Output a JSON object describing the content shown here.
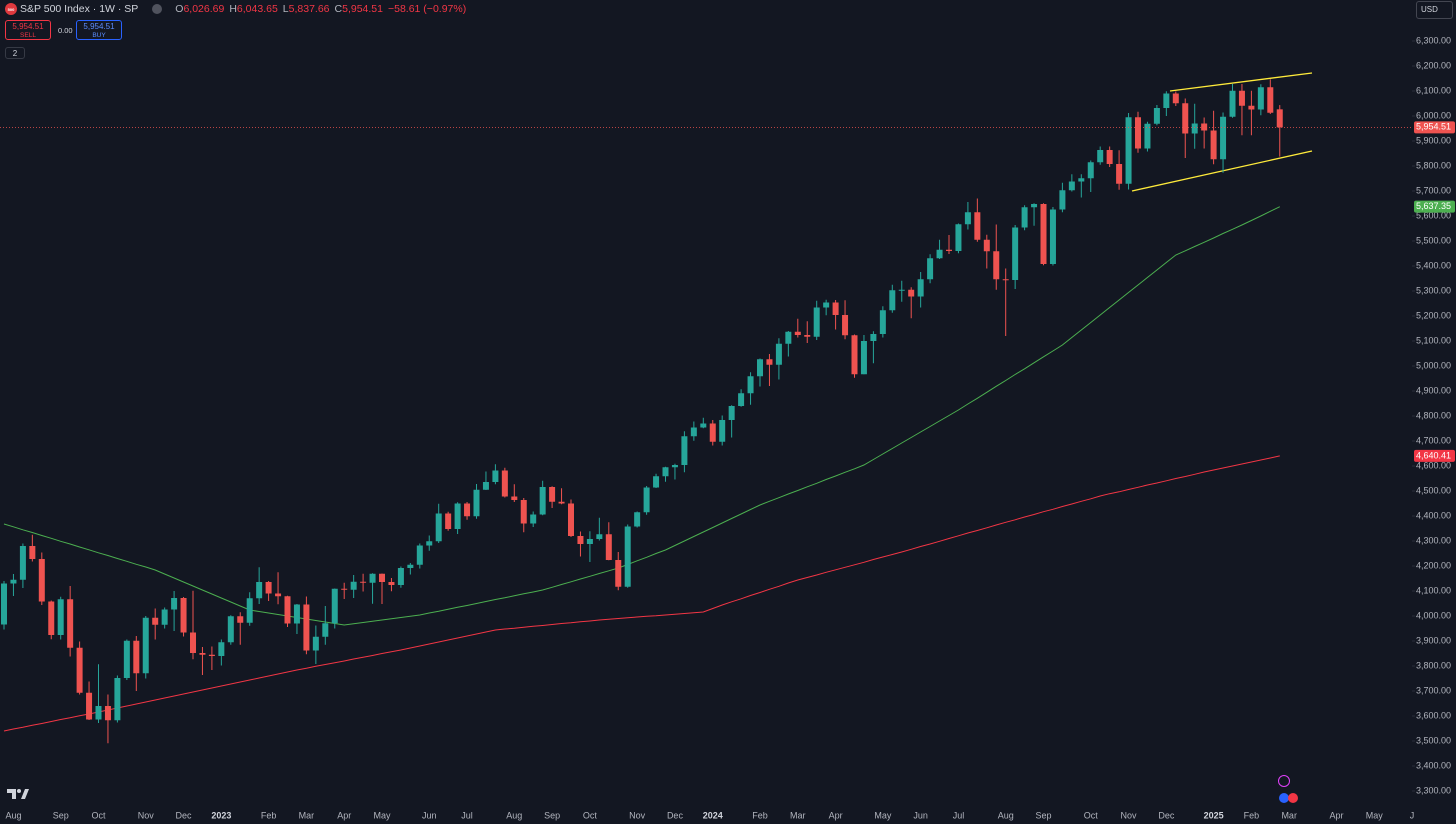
{
  "header": {
    "icon": "500",
    "title": "S&P 500 Index · 1W · SP",
    "ohlc": [
      {
        "key": "O",
        "value": "6,026.69"
      },
      {
        "key": "H",
        "value": "6,043.65"
      },
      {
        "key": "L",
        "value": "5,837.66"
      },
      {
        "key": "C",
        "value": "5,954.51"
      }
    ],
    "change": "−58.61 (−0.97%)",
    "sell": {
      "price": "5,954.51",
      "label": "SELL"
    },
    "spread": "0.00",
    "buy": {
      "price": "5,954.51",
      "label": "BUY"
    },
    "indicators": "2",
    "currency": "USD"
  },
  "chart_data": {
    "type": "candlestick",
    "categories": [
      null,
      "Aug",
      null,
      null,
      null,
      null,
      "Sep",
      null,
      null,
      null,
      "Oct",
      null,
      null,
      null,
      null,
      "Nov",
      null,
      null,
      null,
      "Dec",
      null,
      null,
      null,
      "2023",
      null,
      null,
      null,
      null,
      "Feb",
      null,
      null,
      null,
      "Mar",
      null,
      null,
      null,
      "Apr",
      null,
      null,
      null,
      "May",
      null,
      null,
      null,
      null,
      "Jun",
      null,
      null,
      null,
      "Jul",
      null,
      null,
      null,
      null,
      "Aug",
      null,
      null,
      null,
      "Sep",
      null,
      null,
      null,
      "Oct",
      null,
      null,
      null,
      null,
      "Nov",
      null,
      null,
      null,
      "Dec",
      null,
      null,
      null,
      "2024",
      null,
      null,
      null,
      null,
      "Feb",
      null,
      null,
      null,
      "Mar",
      null,
      null,
      null,
      "Apr",
      null,
      null,
      null,
      null,
      "May",
      null,
      null,
      null,
      "Jun",
      null,
      null,
      null,
      "Jul",
      null,
      null,
      null,
      null,
      "Aug",
      null,
      null,
      null,
      "Sep",
      null,
      null,
      null,
      null,
      "Oct",
      null,
      null,
      null,
      "Nov",
      null,
      null,
      null,
      "Dec",
      null,
      null,
      null,
      null,
      "2025",
      null,
      null,
      null,
      "Feb",
      null,
      null,
      null,
      "Mar",
      null,
      null,
      null,
      null,
      "Apr",
      null,
      null,
      null,
      "May",
      null,
      null,
      null,
      "J"
    ],
    "open": [
      3966,
      4130,
      4145,
      4280,
      4228,
      4058,
      3924,
      4067,
      3873,
      3693,
      3586,
      3640,
      3583,
      3752,
      3901,
      3771,
      3993,
      3965,
      4026,
      4072,
      3934,
      3852,
      3845,
      3840,
      3895,
      3999,
      3973,
      4071,
      4136,
      4090,
      4079,
      3970,
      4046,
      3862,
      3917,
      3971,
      4109,
      4105,
      4137,
      4133,
      4169,
      4136,
      4124,
      4192,
      4205,
      4282,
      4299,
      4410,
      4348,
      4450,
      4399,
      4505,
      4536,
      4582,
      4478,
      4464,
      4370,
      4406,
      4516,
      4457,
      4450,
      4320,
      4288,
      4308,
      4327,
      4224,
      4117,
      4358,
      4415,
      4514,
      4559,
      4595,
      4604,
      4719,
      4754,
      4770,
      4697,
      4784,
      4840,
      4891,
      4959,
      5027,
      5005,
      5089,
      5137,
      5124,
      5117,
      5234,
      5254,
      5204,
      5123,
      4967,
      5100,
      5128,
      5223,
      5303,
      5305,
      5278,
      5347,
      5431,
      5465,
      5460,
      5567,
      5615,
      5505,
      5459,
      5347,
      5344,
      5554,
      5635,
      5648,
      5408,
      5626,
      5703,
      5738,
      5751,
      5815,
      5864,
      5808,
      5729,
      5995,
      5870,
      5969,
      6032,
      6090,
      6051,
      5930,
      5970,
      5942,
      5827,
      5997,
      6101,
      6041,
      6026,
      6115,
      6026.69,
      null,
      null,
      null,
      null,
      null,
      null,
      null,
      null,
      null,
      null,
      null,
      null,
      null,
      null
    ],
    "high": [
      4140,
      4168,
      4290,
      4325,
      4254,
      4062,
      4077,
      4120,
      3898,
      3738,
      3807,
      3686,
      3762,
      3906,
      3920,
      4000,
      4030,
      4034,
      4100,
      4076,
      4101,
      3876,
      3878,
      3906,
      4003,
      4015,
      4095,
      4195,
      4140,
      4175,
      4081,
      4048,
      4078,
      3962,
      4040,
      4110,
      4133,
      4164,
      4169,
      4171,
      4170,
      4152,
      4198,
      4212,
      4290,
      4322,
      4449,
      4417,
      4455,
      4456,
      4528,
      4578,
      4607,
      4593,
      4527,
      4472,
      4418,
      4541,
      4519,
      4511,
      4466,
      4338,
      4339,
      4393,
      4375,
      4256,
      4366,
      4418,
      4520,
      4569,
      4597,
      4609,
      4739,
      4778,
      4793,
      4784,
      4802,
      4843,
      4907,
      4975,
      5030,
      5048,
      5111,
      5140,
      5189,
      5179,
      5261,
      5265,
      5264,
      5263,
      5126,
      5124,
      5139,
      5239,
      5325,
      5341,
      5315,
      5376,
      5447,
      5505,
      5524,
      5570,
      5656,
      5670,
      5525,
      5566,
      5390,
      5564,
      5643,
      5651,
      5651,
      5636,
      5733,
      5767,
      5767,
      5822,
      5878,
      5878,
      5863,
      6012,
      6017,
      5977,
      6044,
      6099,
      6098,
      6070,
      6049,
      5994,
      6021,
      6014,
      6128,
      6128,
      6101,
      6127,
      6147,
      6043.65,
      null,
      null,
      null,
      null,
      null,
      null,
      null,
      null,
      null,
      null,
      null,
      null,
      null,
      null
    ],
    "low": [
      3946,
      4080,
      4112,
      4218,
      4044,
      3907,
      3906,
      3838,
      3686,
      3584,
      3572,
      3491,
      3574,
      3744,
      3700,
      3750,
      3906,
      3950,
      3940,
      3918,
      3827,
      3764,
      3784,
      3802,
      3885,
      3885,
      3961,
      4048,
      4060,
      4047,
      3956,
      3928,
      3847,
      3808,
      3885,
      3950,
      4068,
      4072,
      4098,
      4049,
      4048,
      4099,
      4113,
      4166,
      4190,
      4261,
      4292,
      4341,
      4328,
      4385,
      4389,
      4504,
      4527,
      4474,
      4456,
      4335,
      4356,
      4403,
      4432,
      4447,
      4316,
      4238,
      4216,
      4302,
      4223,
      4103,
      4113,
      4354,
      4405,
      4512,
      4537,
      4546,
      4575,
      4701,
      4751,
      4682,
      4682,
      4714,
      4837,
      4845,
      4918,
      4920,
      4946,
      5038,
      5114,
      5092,
      5104,
      5203,
      5146,
      5107,
      4953,
      4967,
      5011,
      5114,
      5213,
      5257,
      5191,
      5234,
      5331,
      5428,
      5448,
      5451,
      5546,
      5497,
      5390,
      5305,
      5120,
      5308,
      5543,
      5561,
      5403,
      5402,
      5615,
      5698,
      5674,
      5696,
      5805,
      5796,
      5705,
      5706,
      5853,
      5858,
      5963,
      6000,
      6040,
      5832,
      5869,
      5870,
      5807,
      5773,
      5993,
      5923,
      5923,
      6003,
      6008,
      5837.66,
      null,
      null,
      null,
      null,
      null,
      null,
      null,
      null,
      null,
      null,
      null,
      null,
      null,
      null
    ],
    "close": [
      4130,
      4145,
      4280,
      4228,
      4058,
      3924,
      4067,
      3873,
      3693,
      3586,
      3640,
      3583,
      3752,
      3901,
      3771,
      3993,
      3965,
      4026,
      4072,
      3934,
      3852,
      3845,
      3840,
      3895,
      3999,
      3973,
      4071,
      4136,
      4090,
      4079,
      3970,
      4046,
      3862,
      3917,
      3971,
      4109,
      4105,
      4137,
      4133,
      4169,
      4136,
      4124,
      4192,
      4205,
      4282,
      4299,
      4410,
      4348,
      4450,
      4399,
      4505,
      4536,
      4582,
      4478,
      4464,
      4370,
      4406,
      4516,
      4457,
      4450,
      4320,
      4288,
      4308,
      4327,
      4224,
      4117,
      4358,
      4415,
      4514,
      4559,
      4595,
      4604,
      4719,
      4754,
      4770,
      4697,
      4784,
      4840,
      4891,
      4959,
      5027,
      5005,
      5089,
      5137,
      5124,
      5117,
      5234,
      5254,
      5204,
      5123,
      4967,
      5100,
      5128,
      5223,
      5303,
      5305,
      5278,
      5347,
      5431,
      5465,
      5460,
      5567,
      5615,
      5505,
      5459,
      5347,
      5344,
      5554,
      5635,
      5648,
      5408,
      5626,
      5703,
      5738,
      5751,
      5815,
      5864,
      5808,
      5729,
      5995,
      5870,
      5969,
      6032,
      6090,
      6051,
      5930,
      5970,
      5942,
      5827,
      5997,
      6101,
      6041,
      6026,
      6115,
      6013,
      5954.51,
      null,
      null,
      null,
      null,
      null,
      null,
      null,
      null,
      null,
      null,
      null,
      null,
      null,
      null
    ],
    "close_label": "5,954.51",
    "up_color": "#26a69a",
    "down_color": "#ef5350",
    "series": [
      {
        "color": "#4caf50",
        "last_label": "5,637.35",
        "values": [
          4368,
          4357,
          4345,
          4334,
          4322,
          4311,
          4299,
          4288,
          4276,
          4265,
          4253,
          4242,
          4230,
          4219,
          4207,
          4196,
          4184,
          4168,
          4152,
          4136,
          4120,
          4104,
          4088,
          4072,
          4056,
          4040,
          4024,
          4018,
          4012,
          4006,
          4000,
          3994,
          3988,
          3982,
          3976,
          3970,
          3964,
          3969,
          3974,
          3979,
          3984,
          3989,
          3994,
          3999,
          4004,
          4012,
          4019,
          4027,
          4035,
          4042,
          4050,
          4058,
          4066,
          4073,
          4081,
          4089,
          4096,
          4104,
          4115,
          4126,
          4137,
          4148,
          4159,
          4170,
          4181,
          4192,
          4206,
          4221,
          4235,
          4250,
          4264,
          4282,
          4300,
          4318,
          4336,
          4354,
          4372,
          4390,
          4408,
          4426,
          4444,
          4459,
          4473,
          4488,
          4502,
          4517,
          4531,
          4546,
          4560,
          4575,
          4589,
          4604,
          4626,
          4648,
          4670,
          4692,
          4714,
          4736,
          4758,
          4780,
          4802,
          4824,
          4848,
          4871,
          4895,
          4919,
          4942,
          4966,
          4989,
          5013,
          5037,
          5060,
          5084,
          5114,
          5144,
          5174,
          5204,
          5234,
          5264,
          5294,
          5324,
          5354,
          5384,
          5414,
          5444,
          5461,
          5478,
          5495,
          5512,
          5530,
          5547,
          5564,
          5582,
          5600,
          5619,
          5637.35,
          null,
          null,
          null,
          null,
          null,
          null,
          null,
          null,
          null,
          null,
          null,
          null,
          null,
          null
        ]
      },
      {
        "color": "#f23645",
        "last_label": "4,640.41",
        "values": [
          3540,
          3548,
          3555,
          3563,
          3570,
          3578,
          3586,
          3593,
          3601,
          3608,
          3616,
          3624,
          3632,
          3640,
          3648,
          3656,
          3664,
          3672,
          3680,
          3688,
          3696,
          3704,
          3712,
          3720,
          3728,
          3736,
          3744,
          3752,
          3760,
          3768,
          3776,
          3784,
          3791,
          3799,
          3806,
          3813,
          3820,
          3828,
          3835,
          3842,
          3850,
          3857,
          3864,
          3872,
          3880,
          3888,
          3896,
          3904,
          3912,
          3920,
          3928,
          3936,
          3944,
          3948,
          3951,
          3955,
          3959,
          3962,
          3966,
          3970,
          3973,
          3977,
          3980,
          3984,
          3987,
          3990,
          3993,
          3996,
          3999,
          4001,
          4004,
          4007,
          4010,
          4013,
          4016,
          4030,
          4044,
          4057,
          4069,
          4082,
          4094,
          4107,
          4119,
          4132,
          4144,
          4154,
          4164,
          4175,
          4185,
          4195,
          4205,
          4215,
          4226,
          4236,
          4246,
          4256,
          4267,
          4278,
          4288,
          4299,
          4310,
          4321,
          4332,
          4342,
          4353,
          4364,
          4375,
          4385,
          4396,
          4406,
          4417,
          4427,
          4438,
          4448,
          4459,
          4469,
          4480,
          4489,
          4497,
          4506,
          4515,
          4524,
          4532,
          4541,
          4550,
          4558,
          4567,
          4576,
          4584,
          4592,
          4600,
          4608,
          4616,
          4624,
          4632,
          4640.41,
          null,
          null,
          null,
          null,
          null,
          null,
          null,
          null,
          null,
          null,
          null,
          null,
          null,
          null
        ]
      }
    ],
    "ylim": [
      3244,
      6464
    ],
    "yticks": [
      {
        "value": 3300,
        "label": "3,300.00"
      },
      {
        "value": 3400,
        "label": "3,400.00"
      },
      {
        "value": 3500,
        "label": "3,500.00"
      },
      {
        "value": 3600,
        "label": "3,600.00"
      },
      {
        "value": 3700,
        "label": "3,700.00"
      },
      {
        "value": 3800,
        "label": "3,800.00"
      },
      {
        "value": 3900,
        "label": "3,900.00"
      },
      {
        "value": 4000,
        "label": "4,000.00"
      },
      {
        "value": 4100,
        "label": "4,100.00"
      },
      {
        "value": 4200,
        "label": "4,200.00"
      },
      {
        "value": 4300,
        "label": "4,300.00"
      },
      {
        "value": 4400,
        "label": "4,400.00"
      },
      {
        "value": 4500,
        "label": "4,500.00"
      },
      {
        "value": 4600,
        "label": "4,600.00"
      },
      {
        "value": 4700,
        "label": "4,700.00"
      },
      {
        "value": 4800,
        "label": "4,800.00"
      },
      {
        "value": 4900,
        "label": "4,900.00"
      },
      {
        "value": 5000,
        "label": "5,000.00"
      },
      {
        "value": 5100,
        "label": "5,100.00"
      },
      {
        "value": 5200,
        "label": "5,200.00"
      },
      {
        "value": 5300,
        "label": "5,300.00"
      },
      {
        "value": 5400,
        "label": "5,400.00"
      },
      {
        "value": 5500,
        "label": "5,500.00"
      },
      {
        "value": 5600,
        "label": "5,600.00"
      },
      {
        "value": 5700,
        "label": "5,700.00"
      },
      {
        "value": 5800,
        "label": "5,800.00"
      },
      {
        "value": 5900,
        "label": "5,900.00"
      },
      {
        "value": 6000,
        "label": "6,000.00"
      },
      {
        "value": 6100,
        "label": "6,100.00"
      },
      {
        "value": 6200,
        "label": "6,200.00"
      },
      {
        "value": 6300,
        "label": "6,300.00"
      }
    ],
    "grid": false
  }
}
